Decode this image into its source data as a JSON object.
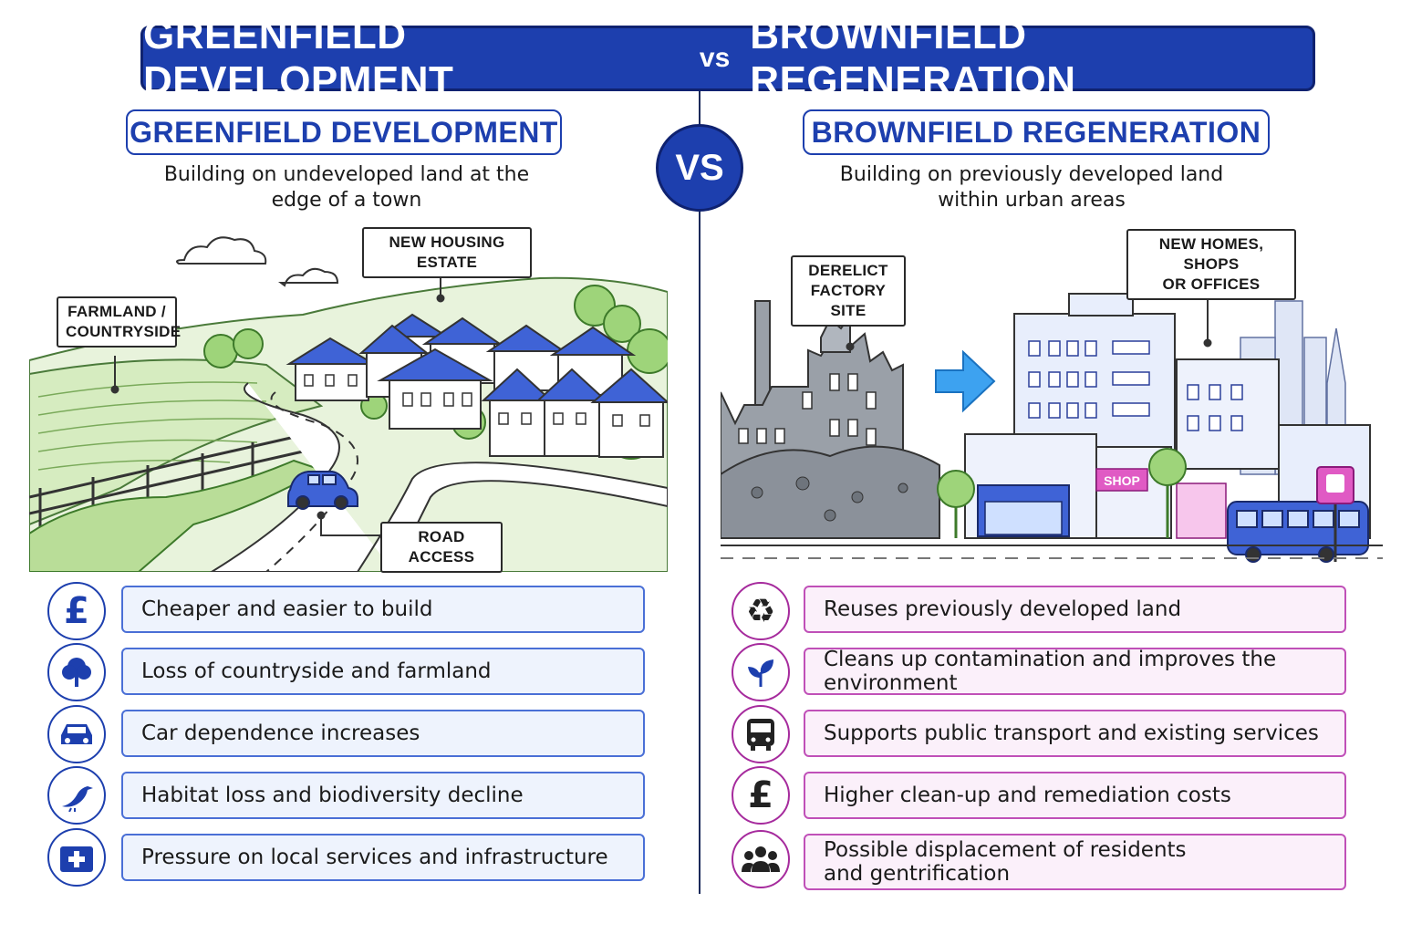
{
  "header": {
    "left": "GREENFIELD DEVELOPMENT",
    "vs": "vs",
    "right": "BROWNFIELD REGENERATION"
  },
  "center_vs": "VS",
  "greenfield": {
    "title": "GREENFIELD DEVELOPMENT",
    "subtitle_line1": "Building on undeveloped land at the",
    "subtitle_line2": "edge of a town",
    "callouts": {
      "farmland": "FARMLAND /\nCOUNTRYSIDE",
      "housing": "NEW HOUSING ESTATE",
      "road": "ROAD ACCESS"
    },
    "points": [
      {
        "icon": "pound-icon",
        "text": "Cheaper and easier to build"
      },
      {
        "icon": "tree-icon",
        "text": "Loss of countryside and farmland"
      },
      {
        "icon": "car-icon",
        "text": "Car dependence increases"
      },
      {
        "icon": "bird-icon",
        "text": "Habitat loss and biodiversity decline"
      },
      {
        "icon": "medical-cross-icon",
        "text": "Pressure on local services and infrastructure"
      }
    ]
  },
  "brownfield": {
    "title": "BROWNFIELD REGENERATION",
    "subtitle_line1": "Building on previously developed land",
    "subtitle_line2": "within urban areas",
    "callouts": {
      "factory": "DERELICT\nFACTORY SITE",
      "homes": "NEW HOMES, SHOPS\nOR OFFICES"
    },
    "shop_sign": "SHOP",
    "points": [
      {
        "icon": "recycle-icon",
        "text": "Reuses previously developed land"
      },
      {
        "icon": "leaf-icon",
        "text": "Cleans up contamination and improves the environment"
      },
      {
        "icon": "bus-icon",
        "text": "Supports public transport and existing services"
      },
      {
        "icon": "pound-icon",
        "text": "Higher clean-up and remediation costs"
      },
      {
        "icon": "people-icon",
        "text": "Possible displacement of residents\nand gentrification"
      }
    ]
  },
  "colors": {
    "primary": "#1d3fae",
    "brownfield_accent": "#a62b9d",
    "green": "#8cc870"
  }
}
